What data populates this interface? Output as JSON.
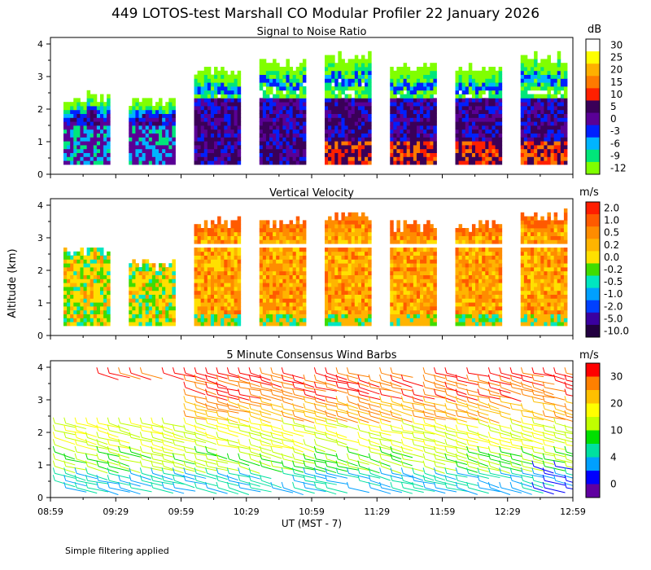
{
  "title": "449 LOTOS-test Marshall CO Modular Profiler 22 January 2026",
  "y_axis_label": "Altitude (km)",
  "x_axis_label": "UT  (MST - 7)",
  "footer_note": "Simple filtering applied",
  "x_ticks": [
    "08:59",
    "09:29",
    "09:59",
    "10:29",
    "10:59",
    "11:29",
    "11:59",
    "12:29",
    "12:59"
  ],
  "y_ticks": [
    "0",
    "1",
    "2",
    "3",
    "4"
  ],
  "chart_data": [
    {
      "type": "heatmap",
      "title": "Signal to Noise Ratio",
      "xlabel": "UT  (MST - 7)",
      "ylabel": "Altitude (km)",
      "ylim": [
        0,
        4.2
      ],
      "x_categories": [
        "08:59",
        "09:29",
        "09:59",
        "10:29",
        "10:59",
        "11:29",
        "11:59",
        "12:29",
        "12:59"
      ],
      "colorbar": {
        "unit": "dB",
        "ticks": [
          "30",
          "25",
          "20",
          "15",
          "10",
          "5",
          "0",
          "-3",
          "-6",
          "-9",
          "-12"
        ],
        "colors": [
          "#ffffff",
          "#ffff00",
          "#ffb000",
          "#ff7a00",
          "#ff2000",
          "#3a0058",
          "#5a0096",
          "#0020ff",
          "#00b4ff",
          "#00e67a",
          "#80ff00"
        ]
      },
      "blocks": [
        {
          "start": "08:59",
          "top_km": 2.3
        },
        {
          "start": "09:29",
          "top_km": 2.2
        },
        {
          "start": "09:59",
          "top_km": 3.1
        },
        {
          "start": "10:29",
          "top_km": 3.3
        },
        {
          "start": "10:59",
          "top_km": 3.5
        },
        {
          "start": "11:29",
          "top_km": 3.2
        },
        {
          "start": "11:59",
          "top_km": 3.2
        },
        {
          "start": "12:29",
          "top_km": 3.5
        }
      ]
    },
    {
      "type": "heatmap",
      "title": "Vertical Velocity",
      "xlabel": "UT  (MST - 7)",
      "ylabel": "Altitude (km)",
      "ylim": [
        0,
        4.2
      ],
      "x_categories": [
        "08:59",
        "09:29",
        "09:59",
        "10:29",
        "10:59",
        "11:29",
        "11:59",
        "12:29",
        "12:59"
      ],
      "colorbar": {
        "unit": "m/s",
        "ticks": [
          "2.0",
          "1.0",
          "0.5",
          "0.2",
          "0.0",
          "-0.2",
          "-0.5",
          "-1.0",
          "-2.0",
          "-5.0",
          "-10.0"
        ],
        "colors": [
          "#ff1e00",
          "#ff5a00",
          "#ff8c00",
          "#ffb400",
          "#ffe000",
          "#40dc00",
          "#00e6c0",
          "#00a0ff",
          "#0040ff",
          "#3a00a0",
          "#220040"
        ]
      },
      "blocks": [
        {
          "start": "08:59",
          "top_km": 2.5
        },
        {
          "start": "09:29",
          "top_km": 2.1
        },
        {
          "start": "09:59",
          "top_km": 3.4
        },
        {
          "start": "10:29",
          "top_km": 3.4
        },
        {
          "start": "10:59",
          "top_km": 3.6
        },
        {
          "start": "11:29",
          "top_km": 3.3
        },
        {
          "start": "11:59",
          "top_km": 3.3
        },
        {
          "start": "12:29",
          "top_km": 3.6
        }
      ]
    },
    {
      "type": "scatter",
      "title": "5 Minute Consensus Wind Barbs",
      "xlabel": "UT  (MST - 7)",
      "ylabel": "Altitude (km)",
      "ylim": [
        0,
        4.2
      ],
      "x_categories": [
        "08:59",
        "09:29",
        "09:59",
        "10:29",
        "10:59",
        "11:29",
        "11:59",
        "12:29",
        "12:59"
      ],
      "colorbar": {
        "unit": "m/s",
        "ticks": [
          "30",
          "20",
          "10",
          "4",
          "0"
        ],
        "colors": [
          "#ff0000",
          "#ff8000",
          "#ffc000",
          "#ffff00",
          "#c0ff00",
          "#00e000",
          "#00e0a0",
          "#00a0ff",
          "#0000ff",
          "#6000a0"
        ]
      }
    }
  ]
}
